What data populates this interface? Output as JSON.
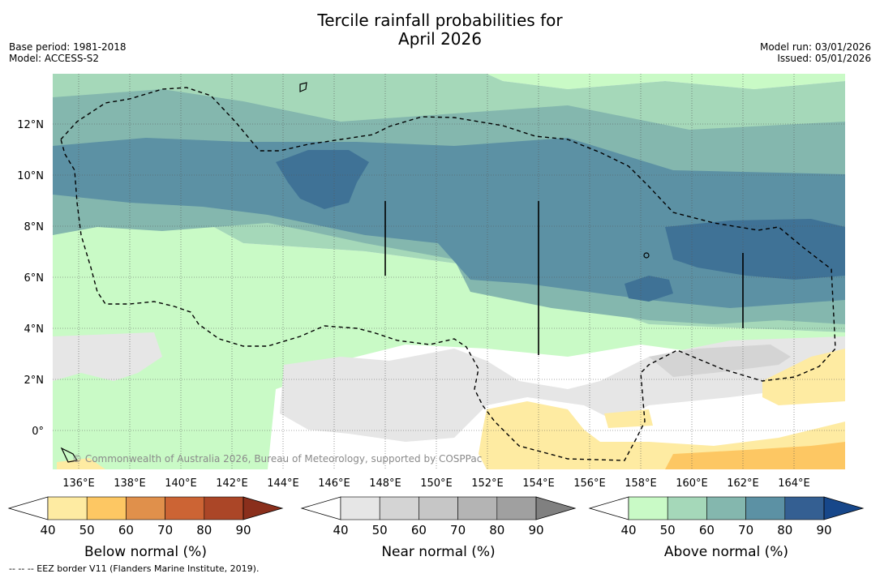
{
  "title_line1": "Tercile rainfall probabilities for",
  "title_line2": "April 2026",
  "base_period": "Base period: 1981-2018",
  "model": "Model: ACCESS-S2",
  "model_run": "Model run: 03/01/2026",
  "issued": "Issued: 05/01/2026",
  "map": {
    "lon_labels": [
      "136°E",
      "138°E",
      "140°E",
      "142°E",
      "144°E",
      "146°E",
      "148°E",
      "150°E",
      "152°E",
      "154°E",
      "156°E",
      "158°E",
      "160°E",
      "162°E",
      "164°E"
    ],
    "lat_labels": [
      "12°N",
      "10°N",
      "8°N",
      "6°N",
      "4°N",
      "2°N",
      "0°"
    ],
    "copyright": "© Commonwealth of Australia 2026, Bureau of Meteorology, supported by COSPPac"
  },
  "colorbars": [
    {
      "title": "Below normal (%)",
      "ticks": [
        "40",
        "50",
        "60",
        "70",
        "80",
        "90"
      ],
      "colors": [
        "#ffffff",
        "#feeba2",
        "#fdc763",
        "#e0904b",
        "#cc6434",
        "#ab4627",
        "#8a2f1c"
      ]
    },
    {
      "title": "Near normal (%)",
      "ticks": [
        "40",
        "50",
        "60",
        "70",
        "80",
        "90"
      ],
      "colors": [
        "#ffffff",
        "#e6e6e6",
        "#d4d4d4",
        "#c6c6c6",
        "#b4b4b4",
        "#a0a0a0",
        "#808080"
      ]
    },
    {
      "title": "Above normal (%)",
      "ticks": [
        "40",
        "50",
        "60",
        "70",
        "80",
        "90"
      ],
      "colors": [
        "#ffffff",
        "#c9fac6",
        "#a5d8b9",
        "#84b7ae",
        "#5c91a4",
        "#345f92",
        "#17478a"
      ]
    }
  ],
  "footnote": "--  --  -- EEZ border V11 (Flanders Marine Institute, 2019)."
}
